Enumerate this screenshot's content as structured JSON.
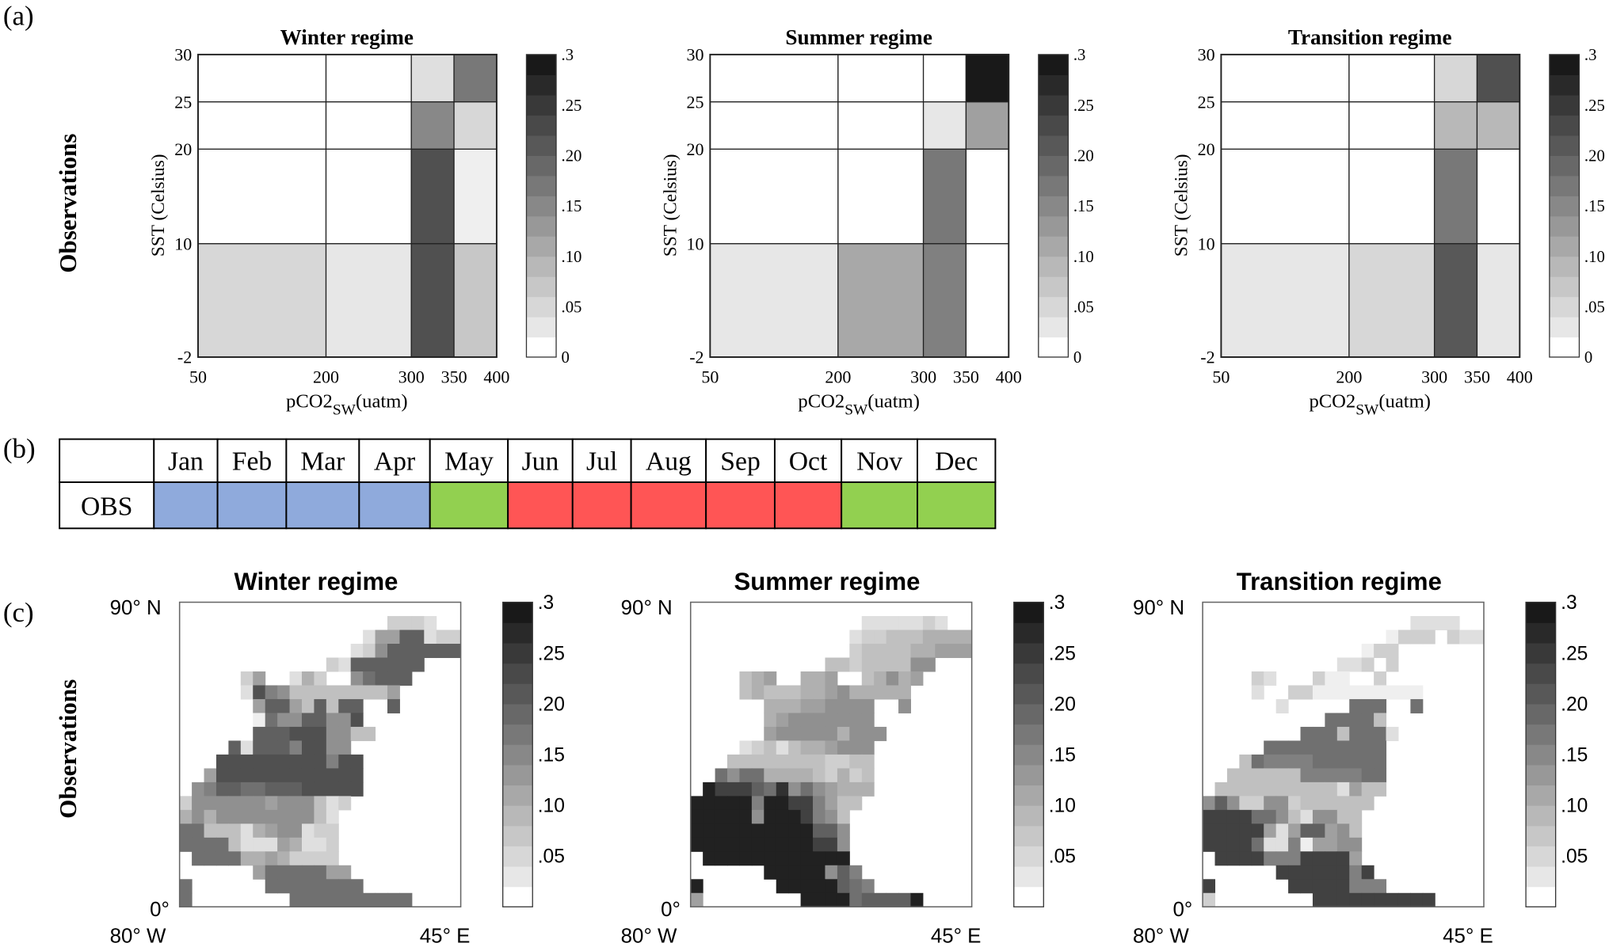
{
  "panel_labels": {
    "a": "(a)",
    "b": "(b)",
    "c": "(c)"
  },
  "row_label": "Observations",
  "chart_data": [
    {
      "type": "heatmap",
      "panel": "a",
      "title": "Winter regime",
      "xlabel_main": "pCO2",
      "xlabel_sub": "SW",
      "xlabel_unit": "(uatm)",
      "ylabel": "SST (Celsius)",
      "x_edges": [
        50,
        200,
        300,
        350,
        400
      ],
      "y_edges": [
        -2,
        10,
        20,
        25,
        30
      ],
      "values_bottom_to_top": [
        [
          0.05,
          0.03,
          0.22,
          0.07
        ],
        [
          0,
          0,
          0.22,
          0.02
        ],
        [
          0,
          0,
          0.15,
          0.05
        ],
        [
          0,
          0,
          0.04,
          0.17
        ]
      ],
      "clim": [
        0,
        0.3
      ],
      "colorbar_ticks": [
        0,
        0.05,
        0.1,
        0.15,
        0.2,
        0.25,
        0.3
      ],
      "colorbar_labels": [
        "0",
        ".05",
        ".10",
        ".15",
        ".20",
        ".25",
        ".3"
      ]
    },
    {
      "type": "heatmap",
      "panel": "a",
      "title": "Summer regime",
      "xlabel_main": "pCO2",
      "xlabel_sub": "SW",
      "xlabel_unit": "(uatm)",
      "ylabel": "SST (Celsius)",
      "x_edges": [
        50,
        200,
        300,
        350,
        400
      ],
      "y_edges": [
        -2,
        10,
        20,
        25,
        30
      ],
      "values_bottom_to_top": [
        [
          0.03,
          0.11,
          0.16,
          0
        ],
        [
          0,
          0,
          0.17,
          0
        ],
        [
          0,
          0,
          0.03,
          0.12
        ],
        [
          0,
          0,
          0,
          0.29
        ]
      ],
      "clim": [
        0,
        0.3
      ],
      "colorbar_ticks": [
        0,
        0.05,
        0.1,
        0.15,
        0.2,
        0.25,
        0.3
      ],
      "colorbar_labels": [
        "0",
        ".05",
        ".10",
        ".15",
        ".20",
        ".25",
        ".3"
      ]
    },
    {
      "type": "heatmap",
      "panel": "a",
      "title": "Transition regime",
      "xlabel_main": "pCO2",
      "xlabel_sub": "SW",
      "xlabel_unit": "(uatm)",
      "ylabel": "SST (Celsius)",
      "x_edges": [
        50,
        200,
        300,
        350,
        400
      ],
      "y_edges": [
        -2,
        10,
        20,
        25,
        30
      ],
      "values_bottom_to_top": [
        [
          0.03,
          0.05,
          0.21,
          0.03
        ],
        [
          0,
          0,
          0.17,
          0
        ],
        [
          0,
          0,
          0.09,
          0.09
        ],
        [
          0,
          0,
          0.05,
          0.22
        ]
      ],
      "clim": [
        0,
        0.3
      ],
      "colorbar_ticks": [
        0,
        0.05,
        0.1,
        0.15,
        0.2,
        0.25,
        0.3
      ],
      "colorbar_labels": [
        "0",
        ".05",
        ".10",
        ".15",
        ".20",
        ".25",
        ".3"
      ]
    },
    {
      "type": "heatmap",
      "panel": "c",
      "title": "Winter regime",
      "lat_top": "90° N",
      "lat_bottom": "0°",
      "lon_left": "80° W",
      "lon_right": "45° E",
      "level_step": 0.02,
      "grid_rows_top_to_bottom": [
        ".......................",
        ".................3332..",
        "...............266aa233",
        "..............237aaaaaa",
        "............32aaaaaa...",
        ".....36..253..79aaa....",
        ".....2b87444444446.....",
        "......6aa64a4aa..a.....",
        "......1977aa77b........",
        "......aaabbb7744.......",
        "....a2aaa8bb77.........",
        "...bbbbbbbbb8bb........",
        "..6bbbbbbbbbbbb........",
        ".78aa99aaabbbbb........",
        "37777776777423.........",
        "5757777777742..........",
        "9944425677233..........",
        "9999422265223..........",
        ".999955653333..........",
        "......69999966.........",
        "9......99999999........",
        "9........9999999999...."
      ],
      "clim": [
        0,
        0.3
      ],
      "colorbar_ticks": [
        0.05,
        0.1,
        0.15,
        0.2,
        0.25,
        0.3
      ],
      "colorbar_labels": [
        ".05",
        ".10",
        ".15",
        ".20",
        ".25",
        ".3"
      ]
    },
    {
      "type": "heatmap",
      "panel": "c",
      "title": "Summer regime",
      "lat_top": "90° N",
      "lat_bottom": "0°",
      "lon_left": "80° W",
      "lon_right": "45° E",
      "level_step": 0.02,
      "grid_rows_top_to_bottom": [
        ".......................",
        "..............2222232..",
        ".............2334445555",
        ".............3444455666",
        "...........443444477...",
        "....456..556..45756....",
        "....454445567 55555....."
      ],
      "clim": [
        0,
        0.3
      ],
      "colorbar_ticks": [
        0.05,
        0.1,
        0.15,
        0.2,
        0.25,
        0.3
      ],
      "colorbar_labels": [
        ".05",
        ".10",
        ".15",
        ".20",
        ".25",
        ".3"
      ]
    },
    {
      "type": "heatmap",
      "panel": "c",
      "title": "Transition regime",
      "lat_top": "90° N",
      "lat_bottom": "0°",
      "lon_left": "80° W",
      "lon_right": "45° E",
      "level_step": 0.02,
      "grid_rows_top_to_bottom": [
        ".......................",
        ".................2222..",
        "...............1333.322",
        ".............133.......",
        "...........223.3.......",
        "....32...311..3........",
        "....2..33111111111.....",
        "......2.....999..9.....",
        "..........99994........",
        "........99949992.......",
        ".....9999999999........",
        "...498888999999........",
        "..44444488888 99........",
        ".4444444444264 4........",
        "7a7337734444 44.........",
        "cccc99742774 4..........",
        "ccccc626aa674..........",
        "cccc9228166 77..........",
        ".cccc888cccc6..........",
        "......cccccc8c.........",
        "c......ccccc888........",
        "3........cccccccccc...."
      ],
      "clim": [
        0,
        0.3
      ],
      "colorbar_ticks": [
        0.05,
        0.1,
        0.15,
        0.2,
        0.25,
        0.3
      ],
      "colorbar_labels": [
        ".05",
        ".10",
        ".15",
        ".20",
        ".25",
        ".3"
      ]
    }
  ],
  "table": {
    "months": [
      "Jan",
      "Feb",
      "Mar",
      "Apr",
      "May",
      "Jun",
      "Jul",
      "Aug",
      "Sep",
      "Oct",
      "Nov",
      "Dec"
    ],
    "row_label": "OBS",
    "regimes": [
      "winter",
      "winter",
      "winter",
      "winter",
      "transition",
      "summer",
      "summer",
      "summer",
      "summer",
      "summer",
      "transition",
      "transition"
    ],
    "colors": {
      "winter": "#8faadc",
      "summer": "#ff5555",
      "transition": "#92d050"
    }
  }
}
